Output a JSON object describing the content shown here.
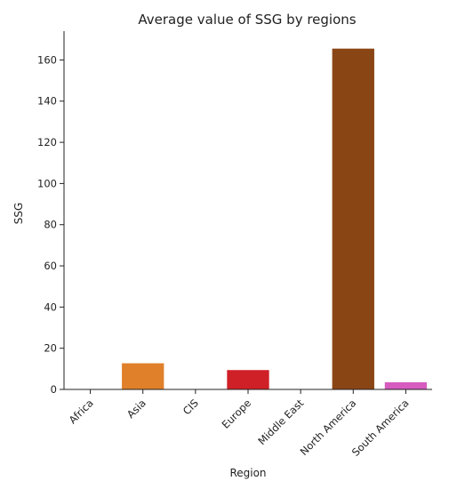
{
  "chart_data": {
    "type": "bar",
    "title": "Average value of SSG by regions",
    "xlabel": "Region",
    "ylabel": "SSG",
    "categories": [
      "Africa",
      "Asia",
      "CIS",
      "Europe",
      "Middle East",
      "North America",
      "South America"
    ],
    "values": [
      0,
      12.7,
      0,
      9.4,
      0,
      165.5,
      3.5
    ],
    "colors": [
      "#3f6fa6",
      "#e0802a",
      "#3a9a45",
      "#cf2027",
      "#8a63b0",
      "#8a4515",
      "#d65cbf"
    ],
    "yticks": [
      0,
      20,
      40,
      60,
      80,
      100,
      120,
      140,
      160
    ],
    "ylim": [
      0,
      174
    ],
    "grid": false,
    "legend": "none"
  }
}
